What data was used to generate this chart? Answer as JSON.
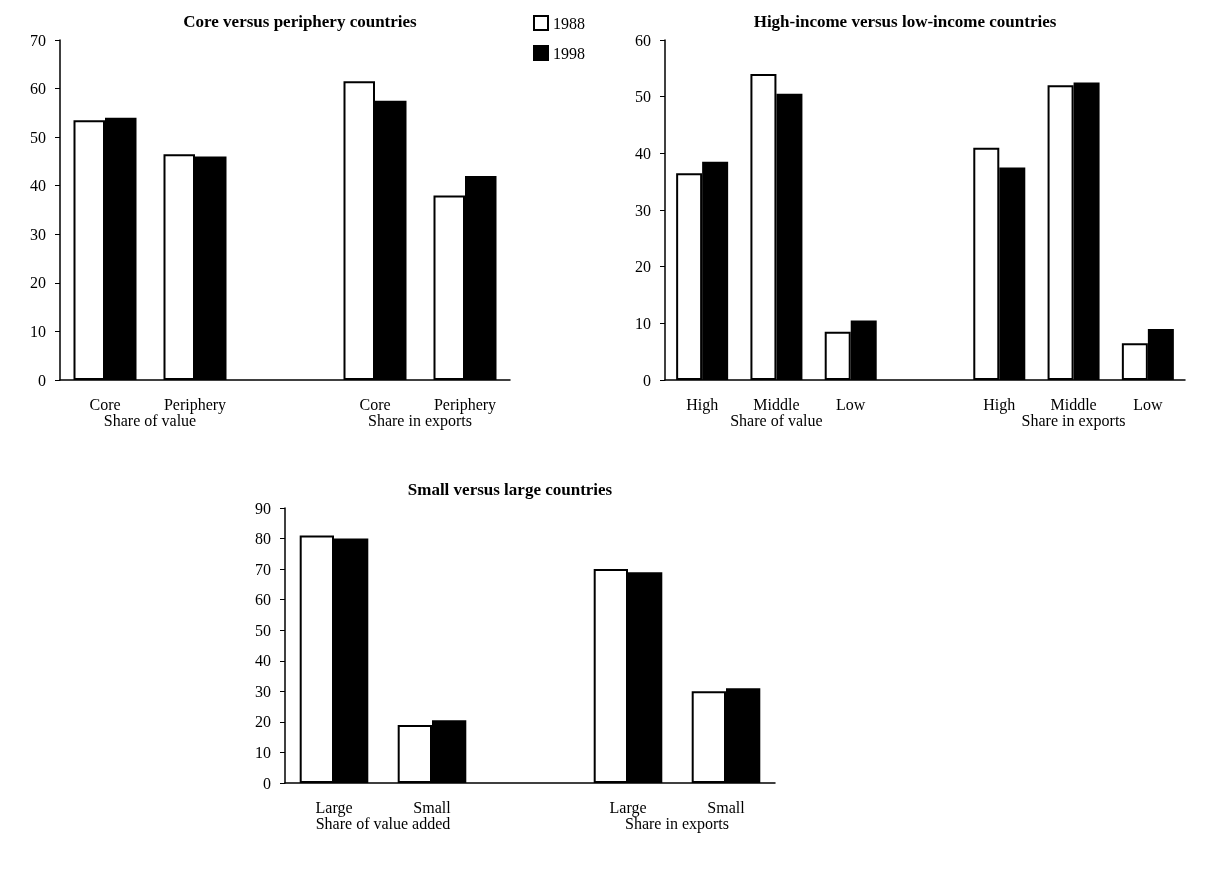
{
  "chart_data": [
    {
      "type": "bar",
      "title": "Core versus periphery countries",
      "categories": [
        "Core",
        "Periphery",
        null,
        "Core",
        "Periphery"
      ],
      "series": [
        {
          "name": "1988",
          "color": "#ffffff",
          "values": [
            53.5,
            46.5,
            null,
            61.5,
            38
          ]
        },
        {
          "name": "1998",
          "color": "#000000",
          "values": [
            54,
            46,
            null,
            57.5,
            42
          ]
        }
      ],
      "ylim": [
        0,
        70
      ],
      "yticks": [
        0,
        10,
        20,
        30,
        40,
        50,
        60,
        70
      ],
      "grid": false,
      "legend": "top right",
      "annotations": [
        "Share of value",
        "Share in exports"
      ]
    },
    {
      "type": "bar",
      "title": "High-income versus low-income countries",
      "categories": [
        "High",
        "Middle",
        "Low",
        null,
        "High",
        "Middle",
        "Low"
      ],
      "series": [
        {
          "color": "#ffffff",
          "values": [
            36.5,
            54,
            8.5,
            null,
            41,
            52,
            6.5
          ]
        },
        {
          "color": "#000000",
          "values": [
            38.5,
            50.5,
            10.5,
            null,
            37.5,
            52.5,
            9
          ]
        }
      ],
      "ylim": [
        0,
        60
      ],
      "yticks": [
        0,
        10,
        20,
        30,
        40,
        50,
        60
      ],
      "grid": false,
      "legend": false,
      "annotations": [
        "Share of value",
        "Share in exports"
      ]
    },
    {
      "type": "bar",
      "title": "Small versus large countries",
      "categories": [
        "Large",
        "Small",
        null,
        "Large",
        "Small"
      ],
      "series": [
        {
          "color": "#ffffff",
          "values": [
            81,
            19,
            null,
            70,
            30
          ]
        },
        {
          "color": "#000000",
          "values": [
            80,
            20.5,
            null,
            69,
            31
          ]
        }
      ],
      "ylim": [
        0,
        90
      ],
      "yticks": [
        0,
        10,
        20,
        30,
        40,
        50,
        60,
        70,
        80,
        90
      ],
      "grid": false,
      "legend": false,
      "annotations": [
        "Share of value added",
        "Share in exports"
      ]
    }
  ]
}
